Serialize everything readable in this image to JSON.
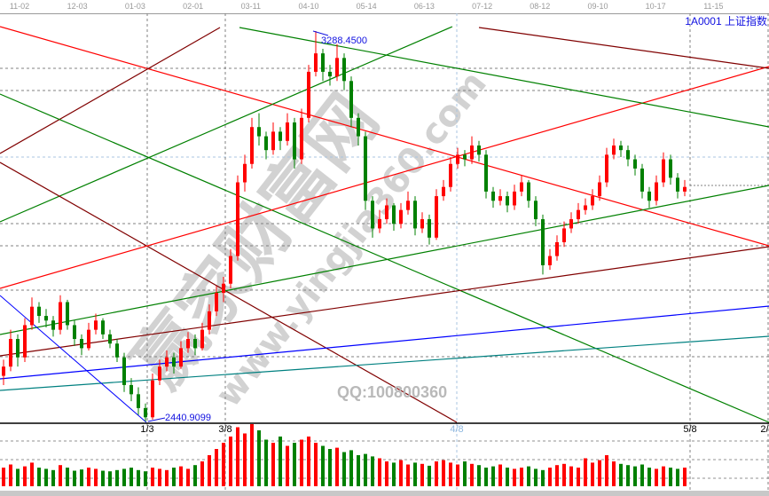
{
  "header": {
    "symbol": "1A0001",
    "name": "上证指数",
    "title": "1A0001  上证指数"
  },
  "watermark": {
    "brand": "赢家财富网",
    "url": "www.yingjia360.com",
    "qq": "QQ:100800360"
  },
  "colors": {
    "up": "#ff0000",
    "down": "#008000",
    "annotation": "#1010e0",
    "grid": "#808080"
  },
  "chart_data": {
    "type": "candlestick",
    "top_axis_labels": [
      "11-02",
      "12-03",
      "01-03",
      "02-01",
      "03-11",
      "04-10",
      "05-14",
      "06-13",
      "07-12",
      "08-12",
      "09-10",
      "10-17",
      "11-15"
    ],
    "bottom_axis_labels": [
      {
        "label": "1/3",
        "highlight": false
      },
      {
        "label": "3/8",
        "highlight": false
      },
      {
        "label": "4/8",
        "highlight": true
      },
      {
        "label": "5/8",
        "highlight": false
      },
      {
        "label": "2/",
        "highlight": false
      }
    ],
    "price_range": [
      2440.9099,
      3288.45
    ],
    "annotations": {
      "high_label": "3288.4500",
      "low_label": "2440.9099"
    },
    "candles": [
      [
        2540,
        2575,
        2520,
        2560
      ],
      [
        2560,
        2640,
        2550,
        2620
      ],
      [
        2620,
        2630,
        2560,
        2580
      ],
      [
        2580,
        2665,
        2570,
        2650
      ],
      [
        2650,
        2710,
        2640,
        2690
      ],
      [
        2690,
        2700,
        2655,
        2670
      ],
      [
        2670,
        2685,
        2645,
        2660
      ],
      [
        2660,
        2670,
        2625,
        2640
      ],
      [
        2640,
        2715,
        2630,
        2700
      ],
      [
        2700,
        2705,
        2640,
        2650
      ],
      [
        2650,
        2660,
        2605,
        2620
      ],
      [
        2620,
        2630,
        2585,
        2600
      ],
      [
        2600,
        2655,
        2595,
        2640
      ],
      [
        2640,
        2675,
        2630,
        2660
      ],
      [
        2660,
        2665,
        2620,
        2630
      ],
      [
        2630,
        2640,
        2600,
        2610
      ],
      [
        2610,
        2620,
        2570,
        2580
      ],
      [
        2580,
        2590,
        2505,
        2520
      ],
      [
        2520,
        2535,
        2485,
        2500
      ],
      [
        2500,
        2515,
        2455,
        2470
      ],
      [
        2470,
        2480,
        2440.91,
        2450
      ],
      [
        2450,
        2545,
        2445,
        2530
      ],
      [
        2530,
        2575,
        2520,
        2560
      ],
      [
        2560,
        2595,
        2550,
        2580
      ],
      [
        2580,
        2590,
        2545,
        2560
      ],
      [
        2560,
        2615,
        2555,
        2600
      ],
      [
        2600,
        2635,
        2590,
        2620
      ],
      [
        2620,
        2630,
        2585,
        2600
      ],
      [
        2600,
        2655,
        2595,
        2640
      ],
      [
        2640,
        2695,
        2630,
        2680
      ],
      [
        2680,
        2735,
        2670,
        2720
      ],
      [
        2720,
        2755,
        2700,
        2740
      ],
      [
        2740,
        2815,
        2730,
        2800
      ],
      [
        2800,
        2975,
        2790,
        2960
      ],
      [
        2960,
        3020,
        2940,
        3000
      ],
      [
        3000,
        3100,
        2990,
        3080
      ],
      [
        3080,
        3110,
        3040,
        3060
      ],
      [
        3060,
        3070,
        3010,
        3030
      ],
      [
        3030,
        3090,
        3020,
        3070
      ],
      [
        3070,
        3080,
        3030,
        3050
      ],
      [
        3050,
        3110,
        3040,
        3090
      ],
      [
        3090,
        3100,
        2990,
        3010
      ],
      [
        3010,
        3120,
        3000,
        3100
      ],
      [
        3100,
        3215,
        3090,
        3200
      ],
      [
        3200,
        3288.45,
        3190,
        3240
      ],
      [
        3240,
        3250,
        3180,
        3200
      ],
      [
        3200,
        3215,
        3170,
        3190
      ],
      [
        3190,
        3260,
        3180,
        3230
      ],
      [
        3230,
        3240,
        3160,
        3180
      ],
      [
        3180,
        3190,
        3080,
        3100
      ],
      [
        3100,
        3110,
        3040,
        3060
      ],
      [
        3060,
        3070,
        2900,
        2920
      ],
      [
        2920,
        2930,
        2840,
        2860
      ],
      [
        2860,
        2900,
        2850,
        2880
      ],
      [
        2880,
        2925,
        2870,
        2910
      ],
      [
        2910,
        2915,
        2855,
        2870
      ],
      [
        2870,
        2915,
        2860,
        2900
      ],
      [
        2900,
        2940,
        2890,
        2920
      ],
      [
        2920,
        2930,
        2845,
        2860
      ],
      [
        2860,
        2895,
        2850,
        2880
      ],
      [
        2880,
        2890,
        2825,
        2840
      ],
      [
        2840,
        2945,
        2835,
        2930
      ],
      [
        2930,
        2965,
        2920,
        2950
      ],
      [
        2950,
        3015,
        2940,
        3000
      ],
      [
        3000,
        3035,
        2990,
        3020
      ],
      [
        3020,
        3030,
        2995,
        3010
      ],
      [
        3010,
        3060,
        3000,
        3040
      ],
      [
        3040,
        3050,
        3005,
        3020
      ],
      [
        3020,
        3030,
        2925,
        2940
      ],
      [
        2940,
        2950,
        2905,
        2920
      ],
      [
        2920,
        2945,
        2910,
        2930
      ],
      [
        2930,
        2940,
        2895,
        2910
      ],
      [
        2910,
        2955,
        2900,
        2940
      ],
      [
        2940,
        2975,
        2930,
        2960
      ],
      [
        2960,
        2965,
        2905,
        2920
      ],
      [
        2920,
        2930,
        2865,
        2880
      ],
      [
        2880,
        2890,
        2760,
        2780
      ],
      [
        2780,
        2815,
        2770,
        2800
      ],
      [
        2800,
        2845,
        2790,
        2830
      ],
      [
        2830,
        2875,
        2820,
        2860
      ],
      [
        2860,
        2895,
        2850,
        2880
      ],
      [
        2880,
        2915,
        2870,
        2900
      ],
      [
        2900,
        2925,
        2890,
        2910
      ],
      [
        2910,
        2945,
        2900,
        2930
      ],
      [
        2930,
        2975,
        2920,
        2960
      ],
      [
        2960,
        3035,
        2950,
        3020
      ],
      [
        3020,
        3055,
        3010,
        3040
      ],
      [
        3040,
        3050,
        3015,
        3030
      ],
      [
        3030,
        3040,
        2995,
        3010
      ],
      [
        3010,
        3020,
        2975,
        2990
      ],
      [
        2990,
        3000,
        2925,
        2940
      ],
      [
        2940,
        2950,
        2905,
        2920
      ],
      [
        2920,
        2975,
        2910,
        2960
      ],
      [
        2960,
        3025,
        2950,
        3010
      ],
      [
        3010,
        3020,
        2955,
        2970
      ],
      [
        2970,
        2980,
        2925,
        2940
      ],
      [
        2940,
        2965,
        2930,
        2950
      ]
    ],
    "volume": [
      30,
      35,
      28,
      32,
      38,
      30,
      28,
      26,
      34,
      30,
      25,
      27,
      30,
      28,
      25,
      24,
      26,
      28,
      30,
      26,
      24,
      30,
      28,
      26,
      30,
      32,
      28,
      34,
      40,
      50,
      60,
      70,
      80,
      95,
      85,
      100,
      90,
      75,
      70,
      80,
      65,
      70,
      75,
      80,
      70,
      65,
      60,
      62,
      55,
      58,
      50,
      52,
      48,
      45,
      40,
      38,
      42,
      35,
      38,
      36,
      33,
      40,
      42,
      38,
      35,
      40,
      36,
      34,
      30,
      32,
      35,
      30,
      28,
      30,
      32,
      28,
      26,
      30,
      34,
      36,
      32,
      30,
      45,
      38,
      42,
      50,
      40,
      36,
      34,
      32,
      35,
      30,
      28,
      32,
      30,
      28,
      30
    ],
    "gann_line_colors": [
      "#ff0000",
      "#800000",
      "#008000",
      "#0000ff",
      "#008080"
    ],
    "grid": true
  }
}
